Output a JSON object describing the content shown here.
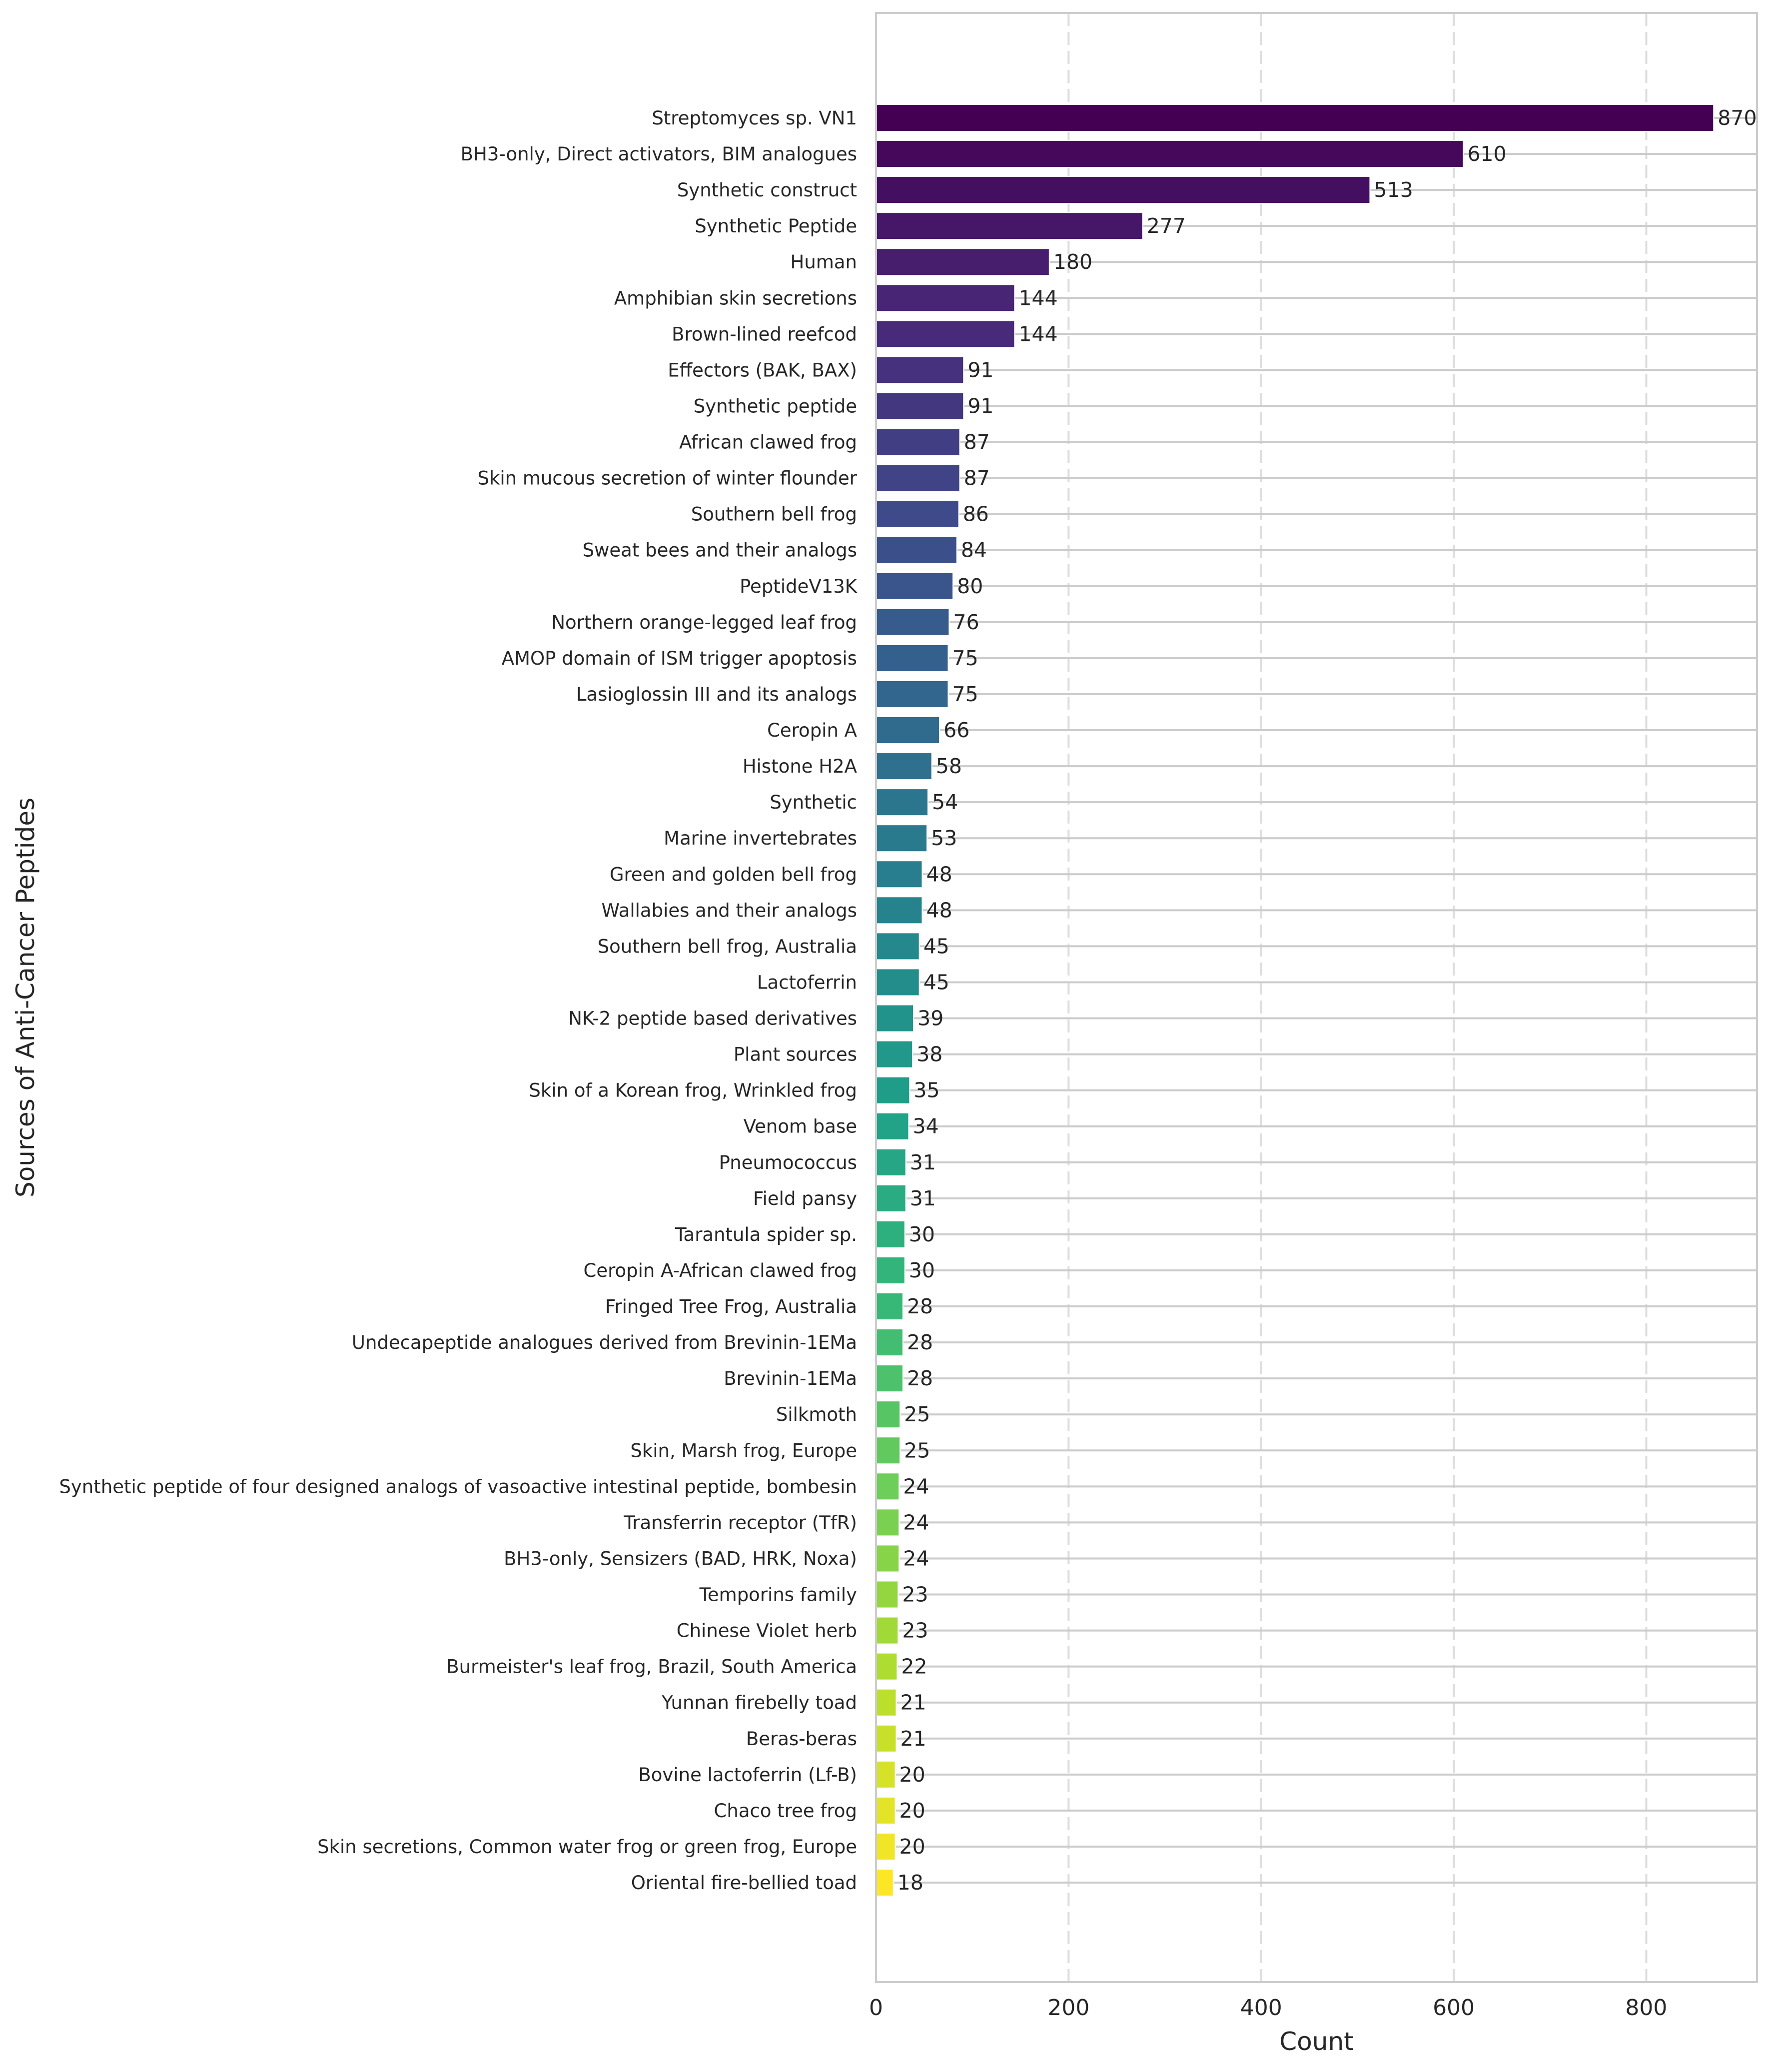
{
  "chart_data": {
    "type": "bar",
    "orientation": "horizontal",
    "title": "",
    "xlabel": "Count",
    "ylabel": "Sources of Anti-Cancer Peptides",
    "xlim": [
      0,
      915
    ],
    "xticks": [
      0,
      200,
      400,
      600,
      800
    ],
    "grid": {
      "x": true,
      "y": true,
      "x_style": "dashed"
    },
    "palette": "viridis",
    "categories": [
      "Streptomyces sp. VN1",
      "BH3-only, Direct activators, BIM analogues",
      "Synthetic construct",
      "Synthetic Peptide",
      "Human",
      "Amphibian skin secretions",
      "Brown-lined reefcod",
      "Effectors (BAK, BAX)",
      "Synthetic peptide",
      "African clawed frog",
      "Skin mucous secretion of winter flounder",
      "Southern bell frog",
      "Sweat bees and their analogs",
      "PeptideV13K",
      "Northern orange-legged leaf frog",
      "AMOP domain of ISM trigger apoptosis",
      "Lasioglossin III and its analogs",
      "Ceropin A",
      "Histone H2A",
      "Synthetic",
      "Marine invertebrates",
      "Green and golden bell frog",
      "Wallabies and their analogs",
      "Southern bell frog, Australia",
      "Lactoferrin",
      "NK-2 peptide based derivatives",
      "Plant sources",
      "Skin of a Korean frog, Wrinkled frog",
      "Venom base",
      "Pneumococcus",
      "Field pansy",
      "Tarantula spider sp.",
      "Ceropin A-African clawed frog",
      "Fringed Tree Frog, Australia",
      "Undecapeptide analogues derived from Brevinin-1EMa",
      "Brevinin-1EMa",
      "Silkmoth",
      "Skin, Marsh frog, Europe",
      "Synthetic peptide of four designed analogs of vasoactive intestinal peptide, bombesin",
      "Transferrin receptor (TfR)",
      "BH3-only, Sensizers (BAD, HRK, Noxa)",
      "Temporins family",
      "Chinese Violet herb",
      "Burmeister's leaf frog, Brazil, South America",
      "Yunnan firebelly toad",
      "Beras-beras",
      "Bovine lactoferrin (Lf-B)",
      "Chaco tree frog",
      "Skin secretions, Common water frog or green frog, Europe",
      "Oriental fire-bellied toad"
    ],
    "values": [
      870,
      610,
      513,
      277,
      180,
      144,
      144,
      91,
      91,
      87,
      87,
      86,
      84,
      80,
      76,
      75,
      75,
      66,
      58,
      54,
      53,
      48,
      48,
      45,
      45,
      39,
      38,
      35,
      34,
      31,
      31,
      30,
      30,
      28,
      28,
      28,
      25,
      25,
      24,
      24,
      24,
      23,
      23,
      22,
      21,
      21,
      20,
      20,
      20,
      18
    ]
  }
}
